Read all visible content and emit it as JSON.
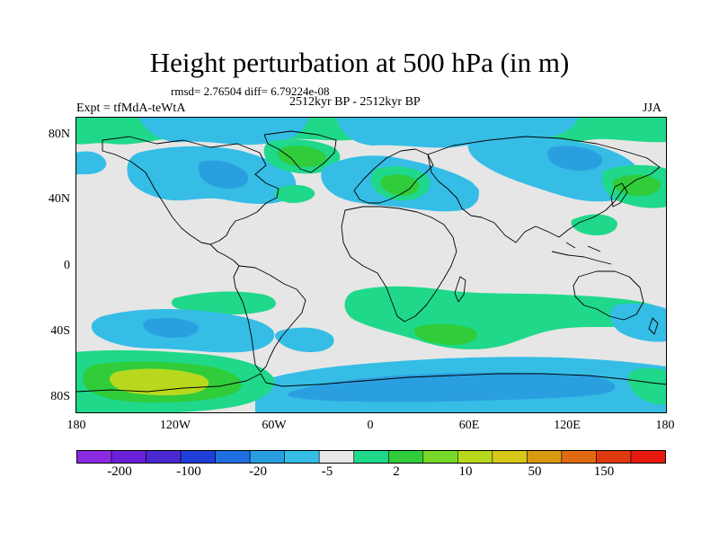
{
  "title": "Height perturbation at 500 hPa (in m)",
  "stats": "rmsd= 2.76504 diff= 6.79224e-08",
  "subtitle": "2512kyr BP - 2512kyr BP",
  "experiment": "Expt = tfMdA-teWtA",
  "season": "JJA",
  "axes": {
    "lat_labels": [
      "80N",
      "40N",
      "0",
      "40S",
      "80S"
    ],
    "lon_labels": [
      "180",
      "120W",
      "60W",
      "0",
      "60E",
      "120E",
      "180"
    ]
  },
  "colorbar": {
    "labels": [
      "-200",
      "-100",
      "-20",
      "-5",
      "2",
      "10",
      "50",
      "150"
    ],
    "colors": [
      "#8a2be2",
      "#6a20d8",
      "#4a2ad0",
      "#1f3fd8",
      "#1f6fe0",
      "#2a9fe0",
      "#35bde6",
      "#e6e6e6",
      "#20d88a",
      "#30cc3a",
      "#78d82a",
      "#b8d81e",
      "#d8c81a",
      "#d89a12",
      "#e06a10",
      "#e03a10",
      "#e81a10"
    ]
  },
  "fill_colors": {
    "ocean": "#e6e6e6",
    "light_blue": "#35bde6",
    "mid_blue": "#2a9fe0",
    "teal_green": "#20d88a",
    "green": "#30cc3a",
    "lime": "#b8d81e"
  }
}
